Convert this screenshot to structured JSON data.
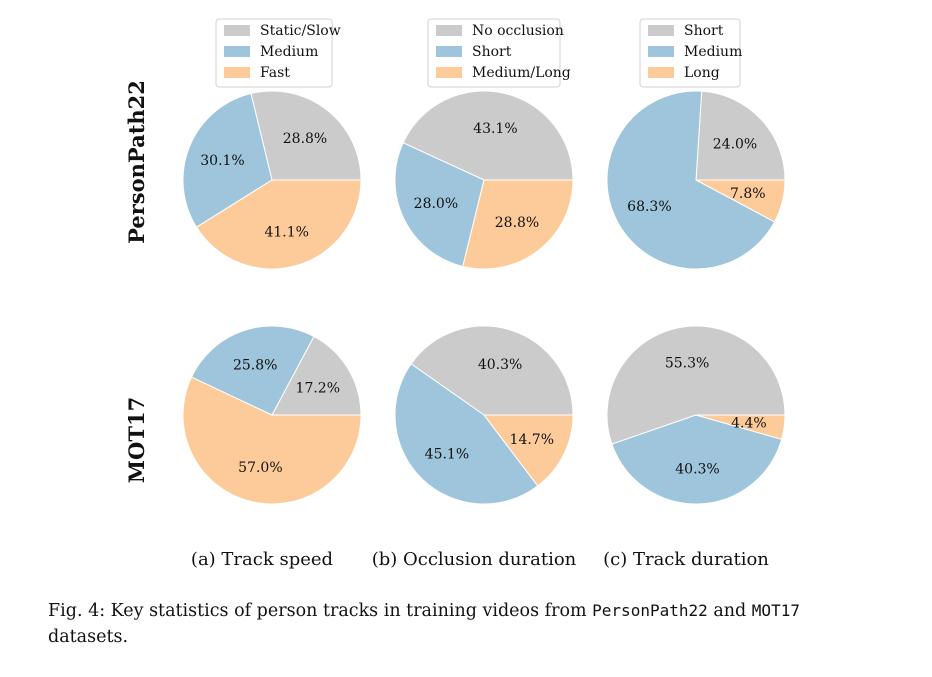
{
  "chart_data": [
    {
      "type": "pie",
      "dataset": "PersonPath22",
      "panel": "(a) Track speed",
      "labels": [
        "Static/Slow",
        "Medium",
        "Fast"
      ],
      "values": [
        28.8,
        30.1,
        41.1
      ]
    },
    {
      "type": "pie",
      "dataset": "PersonPath22",
      "panel": "(b) Occlusion duration",
      "labels": [
        "No occlusion",
        "Short",
        "Medium/Long"
      ],
      "values": [
        43.1,
        28.0,
        28.8
      ]
    },
    {
      "type": "pie",
      "dataset": "PersonPath22",
      "panel": "(c) Track duration",
      "labels": [
        "Short",
        "Medium",
        "Long"
      ],
      "values": [
        24.0,
        68.3,
        7.8
      ]
    },
    {
      "type": "pie",
      "dataset": "MOT17",
      "panel": "(a) Track speed",
      "labels": [
        "Static/Slow",
        "Medium",
        "Fast"
      ],
      "values": [
        17.2,
        25.8,
        57.0
      ]
    },
    {
      "type": "pie",
      "dataset": "MOT17",
      "panel": "(b) Occlusion duration",
      "labels": [
        "No occlusion",
        "Short",
        "Medium/Long"
      ],
      "values": [
        40.3,
        45.1,
        14.7
      ]
    },
    {
      "type": "pie",
      "dataset": "MOT17",
      "panel": "(c) Track duration",
      "labels": [
        "Short",
        "Medium",
        "Long"
      ],
      "values": [
        55.3,
        40.3,
        4.4
      ]
    }
  ],
  "colors": [
    "#cbcbcb",
    "#9ec5db",
    "#fdcb9a"
  ],
  "row_labels": [
    "PersonPath22",
    "MOT17"
  ],
  "subcaptions": [
    "(a) Track speed",
    "(b) Occlusion duration",
    "(c) Track duration"
  ],
  "caption": {
    "prefix": "Fig. 4: Key statistics of person tracks in training videos from ",
    "name1": "PersonPath22",
    "middle": " and ",
    "name2": "MOT17",
    "end": "",
    "line2": "datasets."
  }
}
